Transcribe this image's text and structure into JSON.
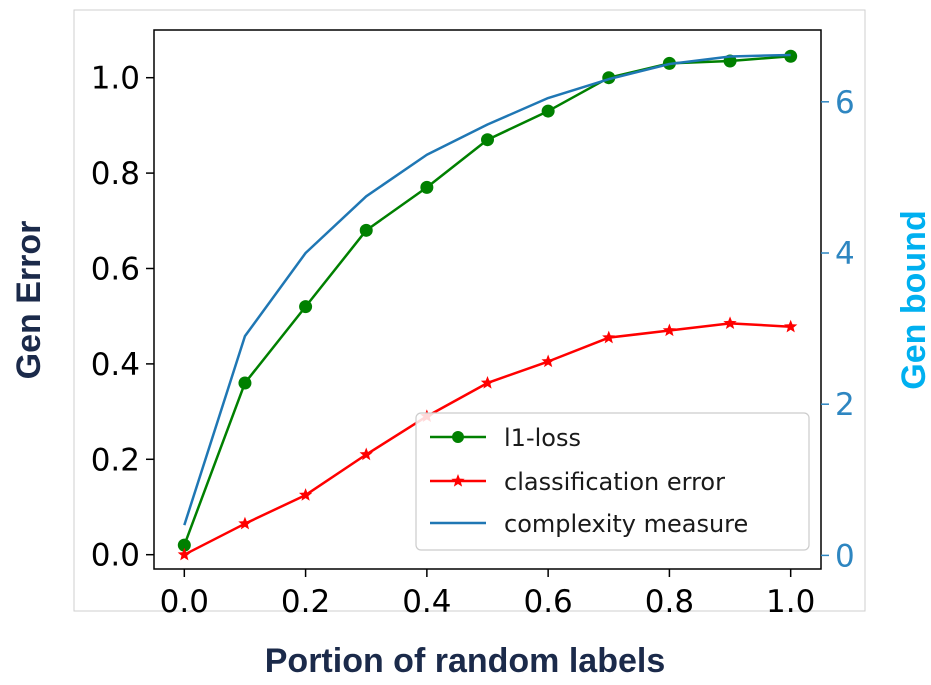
{
  "chart_data": {
    "type": "line",
    "xlabel": "Portion of random labels",
    "ylabel": "Gen Error",
    "y2label": "Gen bound",
    "x": [
      0.0,
      0.1,
      0.2,
      0.3,
      0.4,
      0.5,
      0.6,
      0.7,
      0.8,
      0.9,
      1.0
    ],
    "xlim": [
      -0.05,
      1.05
    ],
    "ylim": [
      -0.03,
      1.1
    ],
    "y2lim": [
      -0.18,
      6.95
    ],
    "xticks": [
      0.0,
      0.2,
      0.4,
      0.6,
      0.8,
      1.0
    ],
    "xtick_labels": [
      "0.0",
      "0.2",
      "0.4",
      "0.6",
      "0.8",
      "1.0"
    ],
    "yticks": [
      0.0,
      0.2,
      0.4,
      0.6,
      0.8,
      1.0
    ],
    "ytick_labels": [
      "0.0",
      "0.2",
      "0.4",
      "0.6",
      "0.8",
      "1.0"
    ],
    "y2ticks": [
      0,
      2,
      4,
      6
    ],
    "y2tick_labels": [
      "0",
      "2",
      "4",
      "6"
    ],
    "grid": false,
    "legend_position": "lower-right",
    "series": [
      {
        "name": "l1-loss",
        "axis": "left",
        "color": "#008000",
        "marker": "circle",
        "values": [
          0.02,
          0.36,
          0.52,
          0.68,
          0.77,
          0.87,
          0.93,
          1.0,
          1.03,
          1.035,
          1.045
        ]
      },
      {
        "name": "classification error",
        "axis": "left",
        "color": "#ff0000",
        "marker": "star",
        "values": [
          0.0,
          0.065,
          0.125,
          0.21,
          0.29,
          0.36,
          0.405,
          0.455,
          0.47,
          0.485,
          0.478
        ]
      },
      {
        "name": "complexity measure",
        "axis": "right",
        "color": "#1f77b4",
        "marker": "none",
        "values": [
          0.4,
          2.9,
          4.0,
          4.75,
          5.3,
          5.7,
          6.05,
          6.3,
          6.5,
          6.6,
          6.62
        ]
      }
    ],
    "colors": {
      "left_axis_text": "#000000",
      "right_axis_text": "#2e86c1",
      "left_title": "#1b2a4a",
      "right_title": "#00b0f0",
      "x_title": "#1b2a4a",
      "frame": "#000000"
    }
  }
}
